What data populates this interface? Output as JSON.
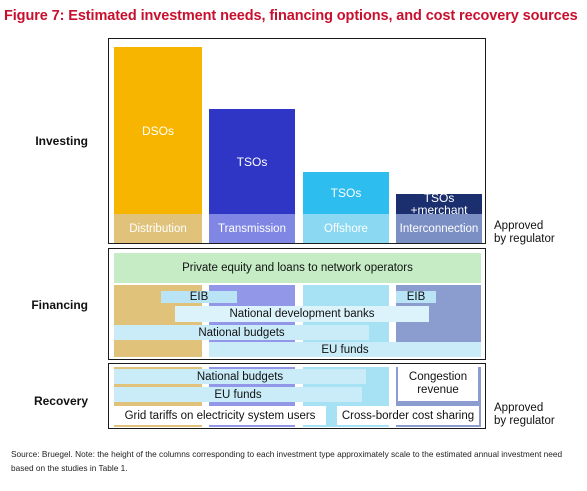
{
  "title": "Figure 7: Estimated investment needs, financing options, and cost recovery sources",
  "rows": {
    "investing": "Investing",
    "financing": "Financing",
    "recovery": "Recovery"
  },
  "side_notes": {
    "approved_investing": "Approved\nby regulator",
    "approved_recovery": "Approved\nby regulator"
  },
  "columns": [
    {
      "operator": "DSOs",
      "type": "Distribution",
      "relative_height": 1.0,
      "color": "#f7b500",
      "base_color": "#e0c27a"
    },
    {
      "operator": "TSOs",
      "type": "Transmission",
      "relative_height": 0.63,
      "color": "#2f35c4",
      "base_color": "#7f86e4"
    },
    {
      "operator": "TSOs",
      "type": "Offshore",
      "relative_height": 0.25,
      "color": "#2dbdee",
      "base_color": "#8ad8f2"
    },
    {
      "operator": "TSOs\n+merchant",
      "type": "Interconnection",
      "relative_height": 0.12,
      "color": "#1b2f6e",
      "base_color": "#7b8fc4"
    }
  ],
  "financing": {
    "private_equity": "Private equity and loans to network operators",
    "eib_left": "EIB",
    "eib_right": "EIB",
    "national_dev_banks": "National development banks",
    "national_budgets": "National budgets",
    "eu_funds": "EU funds",
    "private_color": "#c5ecc5"
  },
  "recovery": {
    "national_budgets": "National budgets",
    "eu_funds": "EU funds",
    "congestion_revenue": "Congestion\nrevenue",
    "grid_tariffs": "Grid tariffs on electricity system users",
    "cross_border": "Cross-border cost sharing"
  },
  "source_note": "Source: Bruegel. Note: the height of the columns corresponding to each investment type approximately scale to the estimated annual investment need based on the studies in Table 1."
}
